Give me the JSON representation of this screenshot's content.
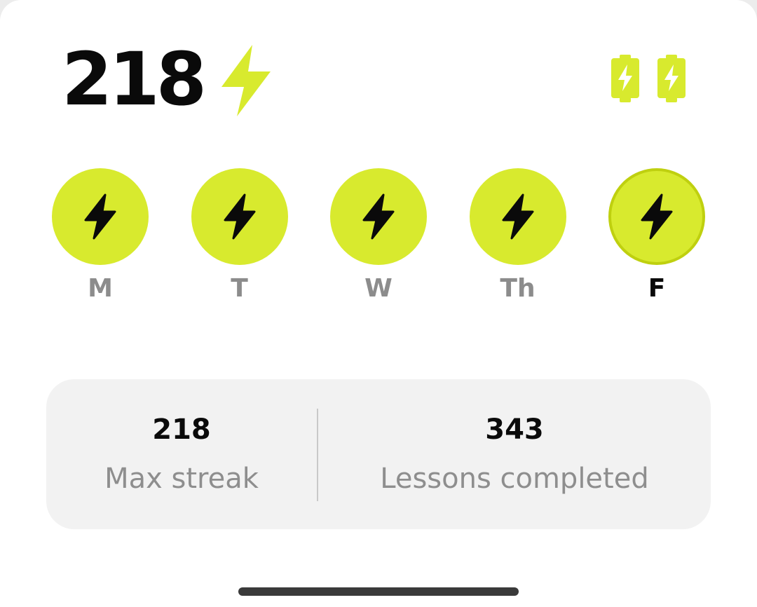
{
  "streak": {
    "count": "218",
    "icon": "lightning-bolt-icon",
    "freeze_icons": [
      "battery-bolt-icon",
      "battery-bolt-icon"
    ]
  },
  "week": {
    "days": [
      {
        "label": "M",
        "icon": "lightning-bolt-icon",
        "completed": true,
        "current": false
      },
      {
        "label": "T",
        "icon": "lightning-bolt-icon",
        "completed": true,
        "current": false
      },
      {
        "label": "W",
        "icon": "lightning-bolt-icon",
        "completed": true,
        "current": false
      },
      {
        "label": "Th",
        "icon": "lightning-bolt-icon",
        "completed": true,
        "current": false
      },
      {
        "label": "F",
        "icon": "lightning-bolt-icon",
        "completed": true,
        "current": true
      }
    ]
  },
  "stats": {
    "max_streak": {
      "value": "218",
      "label": "Max streak"
    },
    "lessons_completed": {
      "value": "343",
      "label": "Lessons completed"
    }
  },
  "colors": {
    "accent": "#d8ea2e",
    "accent_border": "#bfd00f",
    "text_primary": "#0a0a0a",
    "text_muted": "#8c8c8c",
    "card_bg": "#f2f2f2"
  }
}
